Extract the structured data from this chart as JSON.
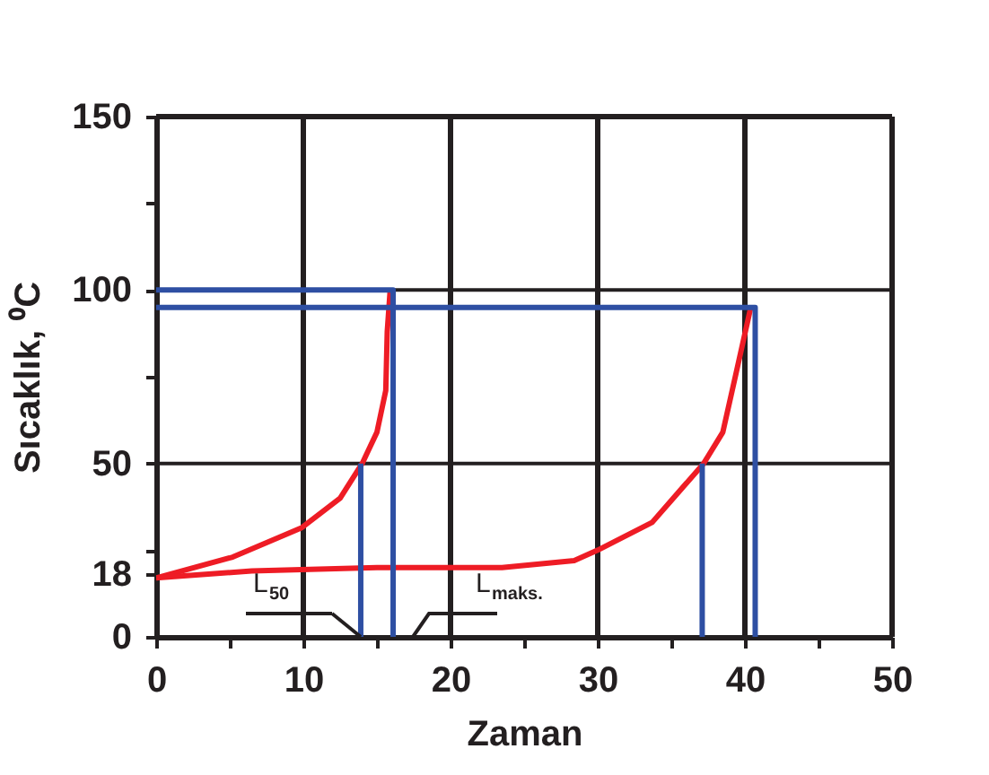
{
  "chart_data": {
    "type": "line",
    "xlabel": "Zaman",
    "ylabel": "Sıcaklık, ⁰C",
    "xlim": [
      0,
      50
    ],
    "ylim": [
      0,
      150
    ],
    "xticks": [
      0,
      {
        "value": 5,
        "label": null
      },
      10,
      {
        "value": 15,
        "label": null
      },
      20,
      {
        "value": 25,
        "label": null
      },
      30,
      {
        "value": 35,
        "label": null
      },
      40,
      {
        "value": 45,
        "label": null
      },
      50
    ],
    "yticks": [
      0,
      18,
      {
        "value": 25,
        "label": null
      },
      50,
      {
        "value": 75,
        "label": null
      },
      100,
      {
        "value": 125,
        "label": null
      },
      150
    ],
    "grid": true,
    "marker": "none",
    "line_style": "solid",
    "series": [
      {
        "color": "#ee1c25",
        "x": [
          0,
          5.2,
          9.9,
          12.5,
          14,
          15,
          15.6,
          15.7,
          15.9
        ],
        "values": [
          17,
          23,
          31.5,
          40,
          50,
          59,
          71,
          88,
          100
        ]
      },
      {
        "color": "#ee1c25",
        "x": [
          0,
          6.5,
          15,
          23.5,
          28.4,
          30,
          33.7,
          37.2,
          38.5,
          39.4,
          40.4
        ],
        "values": [
          17,
          19,
          20,
          20,
          22,
          25,
          33,
          50,
          59,
          76,
          95
        ]
      },
      {
        "color": "#2e4fa3",
        "x": [
          0,
          16.1,
          16.1
        ],
        "values": [
          100,
          100,
          0
        ]
      },
      {
        "color": "#2e4fa3",
        "x": [
          0,
          40.7,
          40.7
        ],
        "values": [
          95,
          95,
          0
        ]
      },
      {
        "color": "#2e4fa3",
        "x": [
          13.9,
          13.9
        ],
        "values": [
          0,
          50
        ]
      },
      {
        "color": "#2e4fa3",
        "x": [
          37.1,
          37.1
        ],
        "values": [
          0,
          50
        ]
      }
    ],
    "annotations": [
      {
        "text": "L$_{50}$",
        "x": 13.9,
        "y": 0
      },
      "L$_{maks.}$"
    ]
  }
}
